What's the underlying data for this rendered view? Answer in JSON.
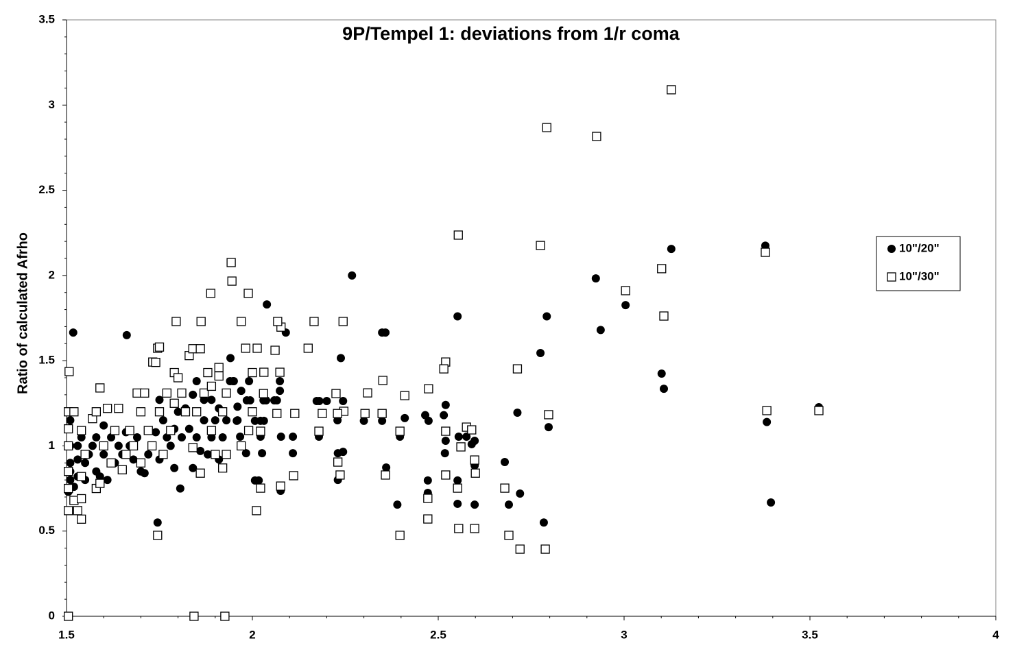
{
  "chart_data": {
    "type": "scatter",
    "title": "9P/Tempel 1: deviations from 1/r coma",
    "ylabel": "Ratio of calculated Afrho",
    "xlim": [
      1.5,
      4
    ],
    "xticks": [
      1.5,
      2,
      2.5,
      3,
      3.5,
      4
    ],
    "ylim": [
      0,
      3.5
    ],
    "yticks": [
      0,
      0.5,
      1,
      1.5,
      2,
      2.5,
      3,
      3.5
    ],
    "grid": false,
    "legend": "right",
    "series": [
      {
        "name": "10\"/20\"",
        "color": "#000000",
        "marker": "circle",
        "x": [
          1.518,
          1.662,
          1.745,
          1.806,
          2.268,
          2.039,
          2.09,
          2.238,
          2.349,
          2.358,
          2.552,
          2.39,
          2.598,
          2.552,
          2.69,
          2.72,
          2.679,
          2.713,
          2.775,
          2.792,
          2.797,
          2.784,
          2.924,
          2.937,
          3.004,
          3.101,
          3.107,
          3.127,
          3.38,
          3.384,
          3.395,
          3.524,
          2.173,
          2.18,
          2.2,
          2.229,
          2.244,
          2.23,
          2.244,
          2.23,
          2.3,
          2.349,
          2.36,
          2.41,
          2.397,
          2.474,
          2.465,
          2.52,
          2.515,
          2.52,
          2.518,
          2.472,
          2.472,
          2.552,
          2.555,
          2.576,
          2.59,
          2.598,
          2.598,
          2.076,
          2.077,
          2.109,
          2.109,
          2.179,
          2.026,
          1.983,
          2.017,
          2.007,
          2.022,
          2.074,
          2.074,
          2.066,
          2.059,
          1.991,
          1.994,
          1.985,
          1.97,
          1.96,
          1.948,
          1.941,
          2.037,
          2.03,
          2.007,
          2.022,
          2.031,
          1.967,
          1.958,
          1.505,
          1.51,
          1.51,
          1.51,
          1.51,
          1.51,
          1.52,
          1.53,
          1.53,
          1.53,
          1.54,
          1.55,
          1.55,
          1.56,
          1.57,
          1.58,
          1.58,
          1.59,
          1.6,
          1.6,
          1.61,
          1.62,
          1.63,
          1.64,
          1.65,
          1.66,
          1.67,
          1.68,
          1.69,
          1.7,
          1.71,
          1.72,
          1.73,
          1.74,
          1.75,
          1.75,
          1.76,
          1.77,
          1.78,
          1.79,
          1.79,
          1.8,
          1.81,
          1.82,
          1.83,
          1.84,
          1.84,
          1.85,
          1.85,
          1.86,
          1.87,
          1.87,
          1.88,
          1.89,
          1.89,
          1.9,
          1.91,
          1.91,
          1.92,
          1.93,
          1.94,
          1.95,
          1.96
        ],
        "values": [
          1.665,
          1.65,
          0.55,
          0.75,
          2.0,
          1.83,
          1.665,
          1.515,
          1.665,
          1.665,
          1.76,
          0.655,
          0.655,
          0.66,
          0.655,
          0.72,
          0.905,
          1.195,
          1.545,
          1.76,
          1.11,
          0.55,
          1.983,
          1.68,
          1.826,
          1.424,
          1.335,
          2.156,
          2.175,
          1.14,
          0.668,
          1.227,
          1.263,
          1.263,
          1.263,
          1.15,
          1.263,
          0.957,
          0.965,
          0.8,
          1.147,
          1.147,
          0.873,
          1.163,
          1.054,
          1.147,
          1.18,
          1.24,
          1.18,
          1.03,
          0.957,
          0.797,
          0.724,
          0.797,
          1.054,
          1.054,
          1.01,
          1.03,
          0.885,
          0.736,
          1.054,
          1.054,
          0.957,
          1.054,
          0.957,
          0.957,
          0.797,
          0.797,
          1.054,
          1.38,
          1.323,
          1.267,
          1.267,
          1.38,
          1.267,
          1.267,
          1.323,
          1.23,
          1.38,
          1.515,
          1.267,
          1.267,
          1.147,
          1.147,
          1.147,
          1.054,
          1.147,
          0.73,
          0.8,
          0.85,
          0.9,
          1.0,
          1.15,
          0.76,
          0.82,
          0.92,
          1.0,
          1.05,
          0.8,
          0.9,
          0.95,
          1.0,
          0.85,
          1.05,
          0.82,
          1.12,
          0.95,
          0.8,
          1.05,
          0.9,
          1.0,
          0.95,
          1.08,
          1.0,
          0.92,
          1.05,
          0.85,
          0.84,
          0.95,
          1.0,
          1.08,
          1.27,
          0.92,
          1.15,
          1.05,
          1.0,
          0.87,
          1.1,
          1.2,
          1.05,
          1.22,
          1.1,
          0.87,
          1.3,
          1.38,
          1.05,
          0.97,
          1.15,
          1.27,
          0.95,
          1.05,
          1.27,
          1.15,
          0.92,
          1.22,
          1.05,
          1.15,
          1.38,
          1.38,
          1.15
        ]
      },
      {
        "name": "10\"/30\"",
        "color": "#000000",
        "marker": "square",
        "x": [
          3.127,
          2.792,
          2.926,
          2.554,
          2.775,
          3.101,
          3.004,
          3.107,
          3.38,
          3.384,
          3.524,
          2.797,
          2.713,
          2.679,
          2.69,
          2.72,
          2.788,
          2.52,
          2.515,
          2.474,
          2.351,
          2.41,
          2.397,
          2.397,
          2.472,
          2.472,
          2.358,
          2.52,
          2.52,
          2.552,
          2.555,
          2.561,
          2.576,
          2.59,
          2.598,
          2.6,
          2.598,
          2.31,
          2.303,
          2.349,
          2.244,
          2.246,
          2.23,
          2.236,
          2.229,
          2.225,
          2.166,
          2.15,
          2.188,
          2.179,
          2.111,
          2.114,
          2.076,
          2.077,
          2.068,
          2.061,
          2.074,
          2.066,
          2.011,
          2.022,
          2.022,
          2.03,
          2.031,
          2.013,
          1.982,
          1.97,
          1.945,
          1.989,
          1.943,
          1.888,
          1.862,
          1.795,
          1.745,
          1.732,
          1.745,
          1.843,
          1.926,
          1.505,
          1.507,
          1.505,
          1.505,
          1.505,
          1.505,
          1.505,
          1.505,
          1.52,
          1.52,
          1.53,
          1.54,
          1.54,
          1.54,
          1.54,
          1.55,
          1.57,
          1.58,
          1.58,
          1.59,
          1.59,
          1.6,
          1.61,
          1.62,
          1.63,
          1.64,
          1.65,
          1.66,
          1.67,
          1.68,
          1.69,
          1.7,
          1.7,
          1.71,
          1.72,
          1.73,
          1.74,
          1.75,
          1.75,
          1.76,
          1.77,
          1.78,
          1.79,
          1.79,
          1.8,
          1.81,
          1.82,
          1.83,
          1.84,
          1.84,
          1.85,
          1.86,
          1.86,
          1.87,
          1.88,
          1.89,
          1.89,
          1.9,
          1.91,
          1.91,
          1.92,
          1.92,
          1.93,
          1.93,
          1.97,
          1.99,
          2.0,
          2.0
        ],
        "values": [
          3.09,
          2.868,
          2.816,
          2.237,
          2.176,
          2.04,
          1.911,
          1.762,
          2.136,
          1.207,
          1.207,
          1.183,
          1.452,
          0.752,
          0.475,
          0.394,
          0.394,
          1.492,
          1.452,
          1.335,
          1.384,
          1.295,
          1.086,
          0.475,
          0.571,
          0.692,
          0.829,
          1.086,
          0.829,
          0.752,
          0.515,
          0.994,
          1.11,
          1.094,
          0.917,
          0.84,
          0.515,
          1.311,
          1.19,
          1.19,
          1.73,
          1.203,
          0.905,
          0.829,
          1.19,
          1.307,
          1.73,
          1.573,
          1.19,
          1.086,
          0.825,
          1.19,
          0.764,
          1.697,
          1.73,
          1.561,
          1.432,
          1.19,
          0.62,
          0.752,
          1.086,
          1.307,
          1.432,
          1.573,
          1.573,
          1.73,
          1.967,
          1.895,
          2.076,
          1.895,
          1.73,
          1.73,
          1.573,
          1.492,
          0.475,
          0,
          0,
          0,
          1.436,
          0.62,
          0.75,
          0.85,
          1.0,
          1.1,
          1.2,
          1.2,
          0.68,
          0.62,
          0.57,
          0.69,
          0.82,
          1.09,
          0.95,
          1.16,
          0.75,
          1.2,
          0.78,
          1.34,
          1.0,
          1.22,
          0.9,
          1.09,
          1.22,
          0.86,
          0.95,
          1.09,
          1.0,
          1.31,
          1.2,
          0.9,
          1.31,
          1.09,
          1.0,
          1.49,
          1.58,
          1.2,
          0.95,
          1.31,
          1.09,
          1.43,
          1.25,
          1.4,
          1.31,
          1.2,
          1.53,
          1.57,
          0.99,
          1.2,
          1.57,
          0.84,
          1.31,
          1.43,
          1.35,
          1.09,
          0.95,
          1.46,
          1.41,
          0.87,
          1.2,
          1.31,
          0.95,
          1.0,
          1.09,
          1.43,
          1.2
        ]
      }
    ]
  }
}
